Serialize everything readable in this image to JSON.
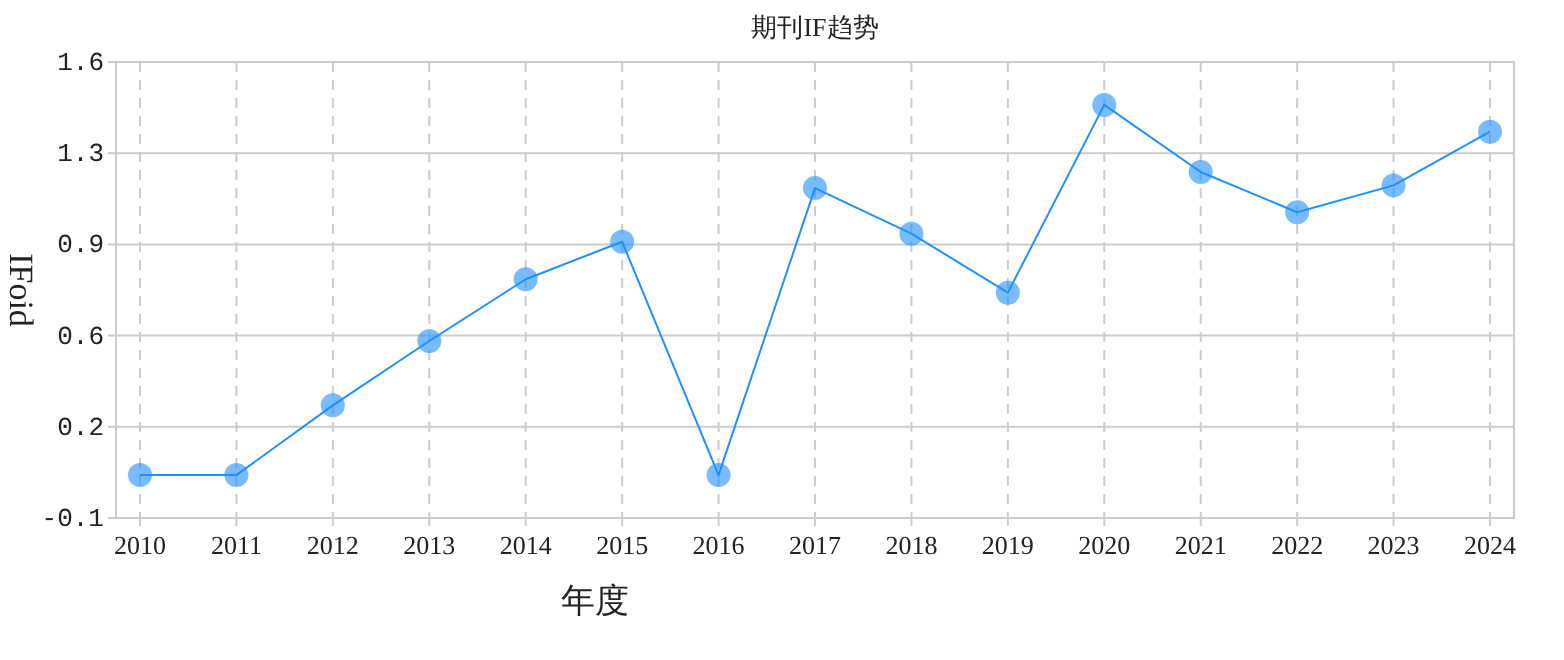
{
  "chart_data": {
    "type": "line",
    "title": "期刊IF趋势",
    "xlabel": "年度",
    "ylabel": "IFoid",
    "categories": [
      "2010",
      "2011",
      "2012",
      "2013",
      "2014",
      "2015",
      "2016",
      "2017",
      "2018",
      "2019",
      "2020",
      "2021",
      "2022",
      "2023",
      "2024"
    ],
    "series": [
      {
        "color": "#1e90ff",
        "values": [
          0.06,
          0.06,
          0.32,
          0.56,
          0.79,
          0.93,
          0.06,
          1.13,
          0.96,
          0.74,
          1.44,
          1.19,
          1.04,
          1.14,
          1.34
        ]
      }
    ],
    "ylim": [
      -0.1,
      1.6
    ],
    "yticks": [
      -0.1,
      {
        "value": 0.24,
        "label": "0.2"
      },
      {
        "value": 0.58,
        "label": "0.6"
      },
      {
        "value": 0.92,
        "label": "0.9"
      },
      {
        "value": 1.26,
        "label": "1.3"
      },
      1.6
    ],
    "grid": true,
    "marker": "circle",
    "line_style": "solid"
  }
}
